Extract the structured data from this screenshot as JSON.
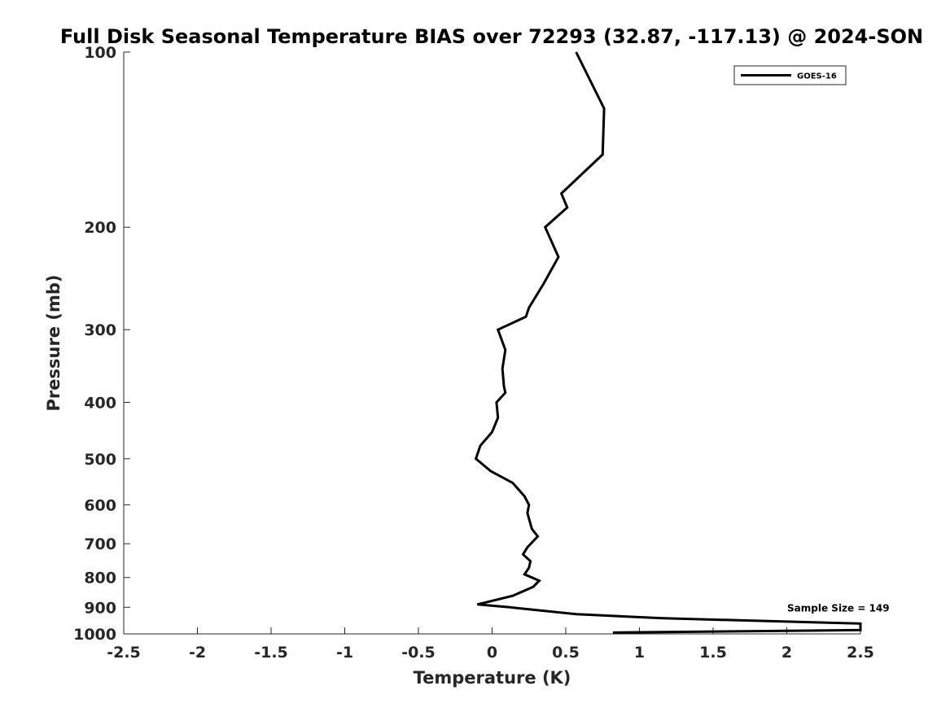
{
  "chart_data": {
    "type": "line",
    "title": "Full Disk Seasonal Temperature BIAS over 72293 (32.87, -117.13) @ 2024-SON",
    "xlabel": "Temperature (K)",
    "ylabel": "Pressure (mb)",
    "xlim": [
      -2.5,
      2.5
    ],
    "ylim": [
      100,
      1000
    ],
    "y_scale": "log",
    "y_reversed": true,
    "grid": false,
    "legend_position": "top-right",
    "x_ticks": [
      -2.5,
      -2,
      -1.5,
      -1,
      -0.5,
      0,
      0.5,
      1,
      1.5,
      2,
      2.5
    ],
    "x_tick_labels": [
      "-2.5",
      "-2",
      "-1.5",
      "-1",
      "-0.5",
      "0",
      "0.5",
      "1",
      "1.5",
      "2",
      "2.5"
    ],
    "y_ticks": [
      100,
      200,
      300,
      400,
      500,
      600,
      700,
      800,
      900,
      1000
    ],
    "y_tick_labels": [
      "100",
      "200",
      "300",
      "400",
      "500",
      "600",
      "700",
      "800",
      "900",
      "1000"
    ],
    "series": [
      {
        "name": "GOES-16",
        "color": "#000000",
        "points": [
          {
            "t": 0.57,
            "p": 100
          },
          {
            "t": 0.76,
            "p": 125
          },
          {
            "t": 0.75,
            "p": 150
          },
          {
            "t": 0.47,
            "p": 175
          },
          {
            "t": 0.51,
            "p": 185
          },
          {
            "t": 0.36,
            "p": 200
          },
          {
            "t": 0.45,
            "p": 225
          },
          {
            "t": 0.35,
            "p": 250
          },
          {
            "t": 0.25,
            "p": 275
          },
          {
            "t": 0.23,
            "p": 285
          },
          {
            "t": 0.04,
            "p": 300
          },
          {
            "t": 0.09,
            "p": 325
          },
          {
            "t": 0.07,
            "p": 350
          },
          {
            "t": 0.08,
            "p": 375
          },
          {
            "t": 0.09,
            "p": 385
          },
          {
            "t": 0.03,
            "p": 400
          },
          {
            "t": 0.04,
            "p": 425
          },
          {
            "t": 0.0,
            "p": 450
          },
          {
            "t": -0.08,
            "p": 475
          },
          {
            "t": -0.11,
            "p": 500
          },
          {
            "t": -0.01,
            "p": 525
          },
          {
            "t": 0.14,
            "p": 550
          },
          {
            "t": 0.22,
            "p": 580
          },
          {
            "t": 0.25,
            "p": 600
          },
          {
            "t": 0.24,
            "p": 620
          },
          {
            "t": 0.27,
            "p": 660
          },
          {
            "t": 0.31,
            "p": 680
          },
          {
            "t": 0.24,
            "p": 710
          },
          {
            "t": 0.21,
            "p": 730
          },
          {
            "t": 0.26,
            "p": 750
          },
          {
            "t": 0.25,
            "p": 770
          },
          {
            "t": 0.22,
            "p": 790
          },
          {
            "t": 0.32,
            "p": 810
          },
          {
            "t": 0.28,
            "p": 830
          },
          {
            "t": 0.14,
            "p": 860
          },
          {
            "t": -0.1,
            "p": 890
          },
          {
            "t": 0.12,
            "p": 900
          },
          {
            "t": 0.57,
            "p": 925
          },
          {
            "t": 1.16,
            "p": 940
          },
          {
            "t": 2.5,
            "p": 960
          },
          {
            "t": 2.5,
            "p": 985
          },
          {
            "t": 0.82,
            "p": 995
          }
        ]
      }
    ],
    "annotations": [
      {
        "text": "Sample Size = 149",
        "t": 2.35,
        "p": 900
      }
    ]
  }
}
